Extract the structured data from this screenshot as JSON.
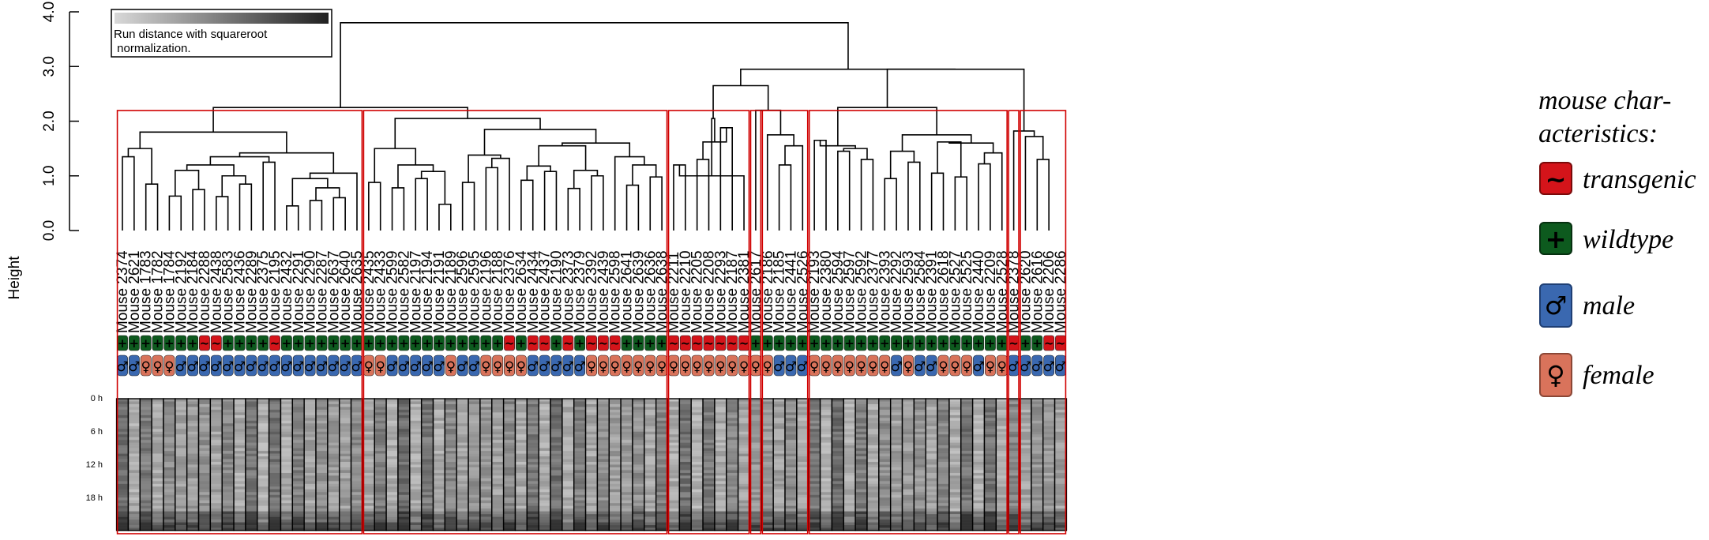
{
  "chart_data": {
    "type": "dendrogram",
    "y_axis": {
      "label": "Height",
      "ylim": [
        0,
        4
      ],
      "ticks": [
        {
          "value": 0,
          "label": "0.0"
        },
        {
          "value": 1,
          "label": "1.0"
        },
        {
          "value": 2,
          "label": "2.0"
        },
        {
          "value": 3,
          "label": "3.0"
        },
        {
          "value": 4,
          "label": "4.0"
        }
      ]
    },
    "color_key": {
      "text_line1": "Run distance with squareroot",
      "text_line2": " normalization."
    },
    "leaves": [
      {
        "label": "Mouse 2374",
        "group": "wildtype",
        "sex": "male"
      },
      {
        "label": "Mouse 2621",
        "group": "wildtype",
        "sex": "male"
      },
      {
        "label": "Mouse 1783",
        "group": "wildtype",
        "sex": "female"
      },
      {
        "label": "Mouse 1782",
        "group": "wildtype",
        "sex": "female"
      },
      {
        "label": "Mouse 1784",
        "group": "wildtype",
        "sex": "female"
      },
      {
        "label": "Mouse 2192",
        "group": "wildtype",
        "sex": "male"
      },
      {
        "label": "Mouse 2184",
        "group": "wildtype",
        "sex": "male"
      },
      {
        "label": "Mouse 2288",
        "group": "transgenic",
        "sex": "male"
      },
      {
        "label": "Mouse 2438",
        "group": "transgenic",
        "sex": "male"
      },
      {
        "label": "Mouse 2583",
        "group": "wildtype",
        "sex": "male"
      },
      {
        "label": "Mouse 2436",
        "group": "wildtype",
        "sex": "male"
      },
      {
        "label": "Mouse 2289",
        "group": "wildtype",
        "sex": "male"
      },
      {
        "label": "Mouse 2375",
        "group": "wildtype",
        "sex": "male"
      },
      {
        "label": "Mouse 2195",
        "group": "transgenic",
        "sex": "male"
      },
      {
        "label": "Mouse 2432",
        "group": "wildtype",
        "sex": "male"
      },
      {
        "label": "Mouse 2291",
        "group": "wildtype",
        "sex": "male"
      },
      {
        "label": "Mouse 2290",
        "group": "wildtype",
        "sex": "male"
      },
      {
        "label": "Mouse 2287",
        "group": "wildtype",
        "sex": "male"
      },
      {
        "label": "Mouse 2637",
        "group": "wildtype",
        "sex": "male"
      },
      {
        "label": "Mouse 2640",
        "group": "wildtype",
        "sex": "male"
      },
      {
        "label": "Mouse 2635",
        "group": "wildtype",
        "sex": "male"
      },
      {
        "label": "Mouse 2435",
        "group": "wildtype",
        "sex": "female"
      },
      {
        "label": "Mouse 2433",
        "group": "wildtype",
        "sex": "female"
      },
      {
        "label": "Mouse 2599",
        "group": "wildtype",
        "sex": "male"
      },
      {
        "label": "Mouse 2582",
        "group": "wildtype",
        "sex": "male"
      },
      {
        "label": "Mouse 2197",
        "group": "wildtype",
        "sex": "male"
      },
      {
        "label": "Mouse 2194",
        "group": "wildtype",
        "sex": "male"
      },
      {
        "label": "Mouse 2191",
        "group": "wildtype",
        "sex": "male"
      },
      {
        "label": "Mouse 2189",
        "group": "wildtype",
        "sex": "female"
      },
      {
        "label": "Mouse 2596",
        "group": "wildtype",
        "sex": "male"
      },
      {
        "label": "Mouse 2595",
        "group": "wildtype",
        "sex": "male"
      },
      {
        "label": "Mouse 2196",
        "group": "wildtype",
        "sex": "female"
      },
      {
        "label": "Mouse 2188",
        "group": "wildtype",
        "sex": "female"
      },
      {
        "label": "Mouse 2376",
        "group": "transgenic",
        "sex": "female"
      },
      {
        "label": "Mouse 2634",
        "group": "wildtype",
        "sex": "female"
      },
      {
        "label": "Mouse 2434",
        "group": "transgenic",
        "sex": "male"
      },
      {
        "label": "Mouse 2437",
        "group": "transgenic",
        "sex": "male"
      },
      {
        "label": "Mouse 2190",
        "group": "wildtype",
        "sex": "male"
      },
      {
        "label": "Mouse 2373",
        "group": "transgenic",
        "sex": "male"
      },
      {
        "label": "Mouse 2379",
        "group": "wildtype",
        "sex": "male"
      },
      {
        "label": "Mouse 2392",
        "group": "transgenic",
        "sex": "female"
      },
      {
        "label": "Mouse 2439",
        "group": "transgenic",
        "sex": "female"
      },
      {
        "label": "Mouse 2598",
        "group": "transgenic",
        "sex": "female"
      },
      {
        "label": "Mouse 2641",
        "group": "wildtype",
        "sex": "female"
      },
      {
        "label": "Mouse 2639",
        "group": "wildtype",
        "sex": "female"
      },
      {
        "label": "Mouse 2636",
        "group": "wildtype",
        "sex": "female"
      },
      {
        "label": "Mouse 2638",
        "group": "wildtype",
        "sex": "female"
      },
      {
        "label": "Mouse 2211",
        "group": "transgenic",
        "sex": "female"
      },
      {
        "label": "Mouse 2210",
        "group": "transgenic",
        "sex": "female"
      },
      {
        "label": "Mouse 2205",
        "group": "transgenic",
        "sex": "female"
      },
      {
        "label": "Mouse 2208",
        "group": "transgenic",
        "sex": "female"
      },
      {
        "label": "Mouse 2293",
        "group": "transgenic",
        "sex": "female"
      },
      {
        "label": "Mouse 2187",
        "group": "transgenic",
        "sex": "female"
      },
      {
        "label": "Mouse 2381",
        "group": "transgenic",
        "sex": "female"
      },
      {
        "label": "Mouse 2617",
        "group": "wildtype",
        "sex": "female"
      },
      {
        "label": "Mouse 2186",
        "group": "wildtype",
        "sex": "female"
      },
      {
        "label": "Mouse 2185",
        "group": "wildtype",
        "sex": "male"
      },
      {
        "label": "Mouse 2441",
        "group": "wildtype",
        "sex": "male"
      },
      {
        "label": "Mouse 2526",
        "group": "wildtype",
        "sex": "male"
      },
      {
        "label": "Mouse 2193",
        "group": "wildtype",
        "sex": "female"
      },
      {
        "label": "Mouse 2380",
        "group": "wildtype",
        "sex": "female"
      },
      {
        "label": "Mouse 2594",
        "group": "wildtype",
        "sex": "female"
      },
      {
        "label": "Mouse 2597",
        "group": "wildtype",
        "sex": "female"
      },
      {
        "label": "Mouse 2592",
        "group": "wildtype",
        "sex": "female"
      },
      {
        "label": "Mouse 2377",
        "group": "wildtype",
        "sex": "female"
      },
      {
        "label": "Mouse 2393",
        "group": "wildtype",
        "sex": "female"
      },
      {
        "label": "Mouse 2292",
        "group": "wildtype",
        "sex": "male"
      },
      {
        "label": "Mouse 2593",
        "group": "wildtype",
        "sex": "female"
      },
      {
        "label": "Mouse 2584",
        "group": "wildtype",
        "sex": "male"
      },
      {
        "label": "Mouse 2391",
        "group": "wildtype",
        "sex": "male"
      },
      {
        "label": "Mouse 2618",
        "group": "wildtype",
        "sex": "female"
      },
      {
        "label": "Mouse 2527",
        "group": "wildtype",
        "sex": "female"
      },
      {
        "label": "Mouse 2525",
        "group": "wildtype",
        "sex": "female"
      },
      {
        "label": "Mouse 2440",
        "group": "wildtype",
        "sex": "male"
      },
      {
        "label": "Mouse 2209",
        "group": "wildtype",
        "sex": "female"
      },
      {
        "label": "Mouse 2528",
        "group": "wildtype",
        "sex": "female"
      },
      {
        "label": "Mouse 2378",
        "group": "transgenic",
        "sex": "male"
      },
      {
        "label": "Mouse 2620",
        "group": "wildtype",
        "sex": "male"
      },
      {
        "label": "Mouse 2616",
        "group": "wildtype",
        "sex": "male"
      },
      {
        "label": "Mouse 2206",
        "group": "transgenic",
        "sex": "male"
      },
      {
        "label": "Mouse 2286",
        "group": "transgenic",
        "sex": "male"
      }
    ],
    "clusters": [
      {
        "name": "cluster-1",
        "first": 0,
        "last": 20
      },
      {
        "name": "cluster-2",
        "first": 21,
        "last": 46
      },
      {
        "name": "cluster-3",
        "first": 47,
        "last": 53
      },
      {
        "name": "cluster-4",
        "first": 54,
        "last": 54
      },
      {
        "name": "cluster-5",
        "first": 55,
        "last": 58
      },
      {
        "name": "cluster-6",
        "first": 59,
        "last": 75
      },
      {
        "name": "cluster-7",
        "first": 76,
        "last": 76
      },
      {
        "name": "cluster-8",
        "first": 77,
        "last": 80
      }
    ],
    "merges": [
      {
        "a": 0,
        "b": 1,
        "h": 1.35
      },
      {
        "a": 2,
        "b": 3,
        "h": 0.85
      },
      {
        "a": 4,
        "b": 5,
        "h": 0.63
      },
      {
        "a": 6,
        "b": 7,
        "h": 0.75
      },
      {
        "a": 8,
        "b": 9,
        "h": 0.62
      },
      {
        "a": 10,
        "b": 11,
        "h": 0.85
      },
      {
        "a": 14,
        "b": 15,
        "h": 0.45
      },
      {
        "a": 16,
        "b": 17,
        "h": 0.55
      },
      {
        "a": 18,
        "b": 19,
        "h": 0.6
      },
      {
        "a": 21,
        "b": 22,
        "h": 0.88
      },
      {
        "a": 23,
        "b": 24,
        "h": 0.78
      },
      {
        "a": 25,
        "b": 26,
        "h": 0.95
      },
      {
        "a": 27,
        "b": 28,
        "h": 0.48
      },
      {
        "a": 29,
        "b": 30,
        "h": 0.88
      },
      {
        "a": 31,
        "b": 32,
        "h": 1.15
      },
      {
        "a": 34,
        "b": 35,
        "h": 0.92
      },
      {
        "a": 38,
        "b": 39,
        "h": 0.77
      },
      {
        "a": 43,
        "b": 44,
        "h": 0.83
      },
      {
        "a": 45,
        "b": 46,
        "h": 0.98
      },
      {
        "a": 47,
        "b": 48,
        "h": 1.2
      },
      {
        "a": 49,
        "b": 50,
        "h": 1.3
      },
      {
        "a": 51,
        "b": 52,
        "h": 1.88
      },
      {
        "a": 56,
        "b": 57,
        "h": 1.2
      },
      {
        "a": 59,
        "b": 60,
        "h": 1.65
      },
      {
        "a": 61,
        "b": 62,
        "h": 1.45
      },
      {
        "a": 63,
        "b": 64,
        "h": 1.3
      },
      {
        "a": 65,
        "b": 66,
        "h": 0.95
      },
      {
        "a": 67,
        "b": 68,
        "h": 1.25
      },
      {
        "a": 69,
        "b": 70,
        "h": 1.05
      },
      {
        "a": 71,
        "b": 72,
        "h": 0.98
      },
      {
        "a": 73,
        "b": 74,
        "h": 1.22
      },
      {
        "a": 78,
        "b": 79,
        "h": 1.3
      },
      {
        "a": 77,
        "b": 78,
        "h": 1.72
      },
      {
        "a": 76,
        "b": 77,
        "h": 1.82
      },
      {
        "a": 0,
        "b": 2,
        "h": 1.5
      },
      {
        "a": 4,
        "b": 6,
        "h": 1.1
      },
      {
        "a": 8,
        "b": 10,
        "h": 1.0
      },
      {
        "a": 6,
        "b": 8,
        "h": 1.2
      },
      {
        "a": 12,
        "b": 13,
        "h": 1.25
      },
      {
        "a": 6,
        "b": 12,
        "h": 1.35
      },
      {
        "a": 16,
        "b": 18,
        "h": 0.78
      },
      {
        "a": 14,
        "b": 16,
        "h": 0.95
      },
      {
        "a": 14,
        "b": 20,
        "h": 1.05
      },
      {
        "a": 4,
        "b": 14,
        "h": 1.42
      },
      {
        "a": 0,
        "b": 4,
        "h": 1.8
      },
      {
        "a": 25,
        "b": 27,
        "h": 1.08
      },
      {
        "a": 23,
        "b": 25,
        "h": 1.2
      },
      {
        "a": 21,
        "b": 23,
        "h": 1.5
      },
      {
        "a": 31,
        "b": 33,
        "h": 1.32
      },
      {
        "a": 29,
        "b": 31,
        "h": 1.38
      },
      {
        "a": 36,
        "b": 37,
        "h": 1.08
      },
      {
        "a": 34,
        "b": 36,
        "h": 1.18
      },
      {
        "a": 40,
        "b": 41,
        "h": 1.0
      },
      {
        "a": 38,
        "b": 40,
        "h": 1.1
      },
      {
        "a": 43,
        "b": 45,
        "h": 1.2
      },
      {
        "a": 42,
        "b": 43,
        "h": 1.35
      },
      {
        "a": 34,
        "b": 38,
        "h": 1.55
      },
      {
        "a": 34,
        "b": 42,
        "h": 1.6
      },
      {
        "a": 29,
        "b": 34,
        "h": 1.85
      },
      {
        "a": 21,
        "b": 29,
        "h": 2.05
      },
      {
        "a": 0,
        "b": 21,
        "h": 2.25
      },
      {
        "a": 49,
        "b": 51,
        "h": 1.62
      },
      {
        "a": 53,
        "b": 47,
        "h": 1.0
      },
      {
        "a": 47,
        "b": 49,
        "h": 2.05
      },
      {
        "a": 56,
        "b": 58,
        "h": 1.55
      },
      {
        "a": 55,
        "b": 56,
        "h": 1.75
      },
      {
        "a": 54,
        "b": 55,
        "h": 2.2
      },
      {
        "a": 47,
        "b": 54,
        "h": 2.65
      },
      {
        "a": 61,
        "b": 63,
        "h": 1.5
      },
      {
        "a": 59,
        "b": 61,
        "h": 1.55
      },
      {
        "a": 65,
        "b": 67,
        "h": 1.45
      },
      {
        "a": 69,
        "b": 71,
        "h": 1.62
      },
      {
        "a": 73,
        "b": 75,
        "h": 1.42
      },
      {
        "a": 69,
        "b": 73,
        "h": 1.6
      },
      {
        "a": 65,
        "b": 69,
        "h": 1.75
      },
      {
        "a": 59,
        "b": 65,
        "h": 2.25
      },
      {
        "a": 76,
        "b": 78,
        "h": 2.65
      },
      {
        "a": 59,
        "b": 76,
        "h": 2.95
      },
      {
        "a": 47,
        "b": 59,
        "h": 2.95
      },
      {
        "a": 0,
        "b": 47,
        "h": 3.8
      }
    ],
    "heatmap": {
      "row_labels": [
        "0 h",
        "6 h",
        "12 h",
        "18 h"
      ]
    }
  },
  "legend": {
    "title_line1": "mouse char-",
    "title_line2": "acteristics:",
    "items": [
      {
        "key": "transgenic",
        "label": "transgenic",
        "symbol": "~",
        "color": "#d4141a",
        "border": "#7a0a0a"
      },
      {
        "key": "wildtype",
        "label": "wildtype",
        "symbol": "+",
        "color": "#0d5a1e",
        "border": "#063010"
      },
      {
        "key": "male",
        "label": "male",
        "symbol": "♂",
        "color": "#3a68b0",
        "border": "#1f3f74"
      },
      {
        "key": "female",
        "label": "female",
        "symbol": "♀",
        "color": "#d9735b",
        "border": "#8b4736"
      }
    ]
  },
  "colors": {
    "transgenic": "#d4141a",
    "wildtype": "#0d5a1e",
    "male": "#3a68b0",
    "female": "#d9735b",
    "cluster_box": "#d00000"
  }
}
